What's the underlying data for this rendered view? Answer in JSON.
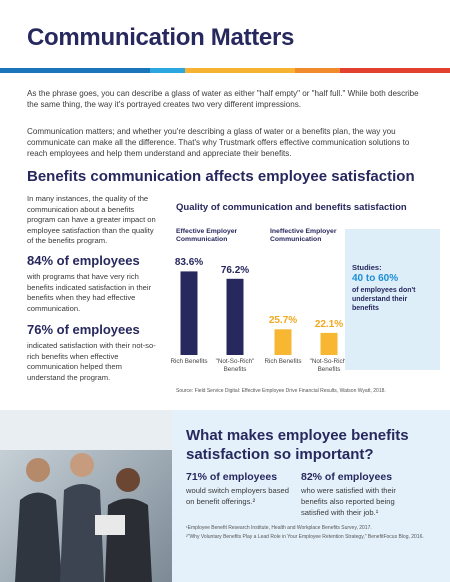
{
  "header": {
    "title": "Communication Matters"
  },
  "intro": {
    "paragraphs": [
      "As the phrase goes, you can describe a glass of water as either \"half empty\" or \"half full.\" While both describe the same thing, the way it's portrayed creates two very different impressions.",
      "Communication matters; and whether you're describing a glass of water or a benefits plan, the way you communicate can make all the difference. That's why Trustmark offers effective communication solutions to reach employees and help them understand and appreciate their benefits."
    ]
  },
  "section1": {
    "heading": "Benefits communication affects employee satisfaction",
    "lead": "In many instances, the quality of the communication about a benefits program can have a greater impact on employee satisfaction than the quality of the benefits program.",
    "stats": [
      {
        "headline": "84% of employees",
        "text": "with programs that have very rich benefits indicated satisfaction in their benefits when they had effective communication."
      },
      {
        "headline": "76% of employees",
        "text": "indicated satisfaction with their not-so-rich benefits when effective communication helped them understand the program."
      }
    ],
    "studies": {
      "label": "Studies:",
      "figure": "40 to 60%",
      "text": "of employees don't understand their benefits"
    },
    "source": "Source: Field Service Digital: Effective Employee Drive Financial Results, Watson Wyatt, 2018."
  },
  "chart_data": {
    "type": "bar",
    "title": "Quality of communication and benefits satisfaction",
    "categories": [
      "Rich Benefits",
      "\"Not-So-Rich\" Benefits"
    ],
    "series": [
      {
        "name": "Effective Employer Communication",
        "color": "#27285e",
        "label_color": "#27285e",
        "values": [
          83.6,
          76.2
        ],
        "value_labels": [
          "83.6%",
          "76.2%"
        ]
      },
      {
        "name": "Ineffective Employer Communication",
        "color": "#f7b733",
        "label_color": "#f2a81d",
        "values": [
          25.7,
          22.1
        ],
        "value_labels": [
          "25.7%",
          "22.1%"
        ]
      }
    ]
  },
  "section2": {
    "heading": "What makes employee benefits satisfaction so important?",
    "stats": [
      {
        "headline": "71% of employees",
        "text": "would switch employers based on benefit offerings.²"
      },
      {
        "headline": "82% of employees",
        "text": "who were satisfied with their benefits also reported being satisfied with their job.¹"
      }
    ],
    "footnotes": [
      "¹Employee Benefit Research Institute, Health and Workplace Benefits Survey, 2017.",
      "²\"Why Voluntary Benefits Play a Lead Role in Your Employee Retention Strategy,\" BenefitFocus Blog, 2016."
    ]
  }
}
